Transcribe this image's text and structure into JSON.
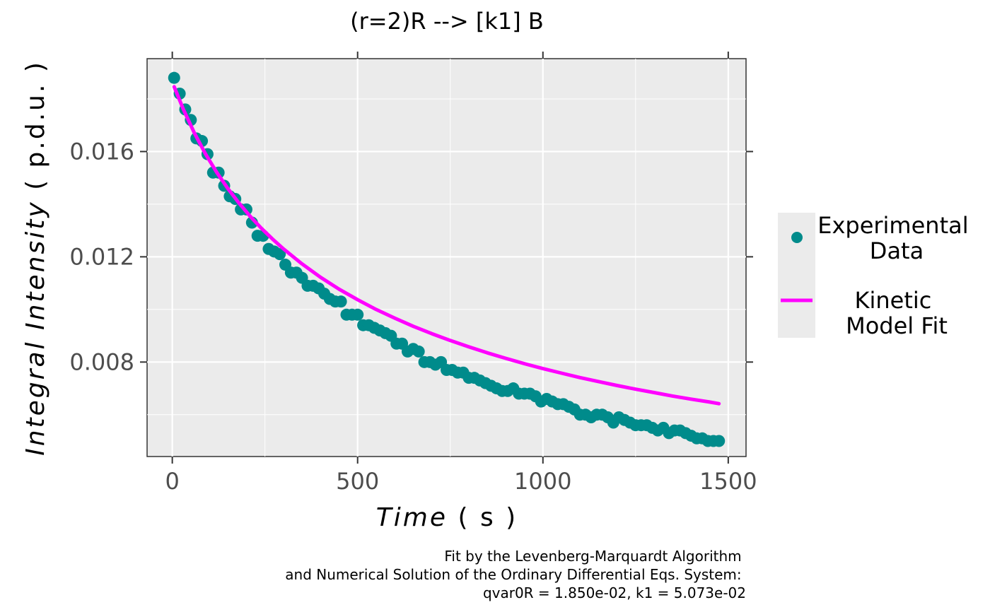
{
  "chart_data": {
    "type": "scatter",
    "title": "(r=2)R --> [k1] B",
    "xlabel": {
      "italic": "Time",
      "unit": " ( s )"
    },
    "ylabel": {
      "italic": "Integral Intensity",
      "unit": " ( p.d.u. )"
    },
    "xlim": [
      -68,
      1548
    ],
    "ylim": [
      0.00441,
      0.01953
    ],
    "x_ticks": [
      0,
      500,
      1000,
      1500
    ],
    "x_tick_labels": [
      "0",
      "500",
      "1000",
      "1500"
    ],
    "y_ticks": [
      0.008,
      0.012,
      0.016
    ],
    "y_tick_labels": [
      "0.008",
      "0.012",
      "0.016"
    ],
    "grid": true,
    "legend_position": "right",
    "legend": [
      {
        "label": [
          "Experimental",
          "Data"
        ],
        "kind": "point",
        "color": "#008B8B"
      },
      {
        "label": [
          "Kinetic",
          "Model Fit"
        ],
        "kind": "line",
        "color": "#FF00FF"
      }
    ],
    "caption": [
      "Fit by the Levenberg-Marquardt Algorithm",
      "and Numerical Solution of the Ordinary Differential Eqs. System:",
      "qvar0R = 1.850e-02, k1 = 5.073e-02"
    ],
    "series": [
      {
        "name": "Experimental Data",
        "kind": "points",
        "color": "#008B8B",
        "x": [
          5,
          20,
          35,
          50,
          65,
          80,
          95,
          110,
          125,
          140,
          155,
          170,
          185,
          200,
          215,
          230,
          245,
          260,
          275,
          290,
          305,
          320,
          335,
          350,
          365,
          380,
          395,
          410,
          425,
          440,
          455,
          470,
          485,
          500,
          515,
          530,
          545,
          560,
          575,
          590,
          605,
          620,
          635,
          650,
          665,
          680,
          695,
          710,
          725,
          740,
          755,
          770,
          785,
          800,
          815,
          830,
          845,
          860,
          875,
          890,
          905,
          920,
          935,
          950,
          965,
          980,
          995,
          1010,
          1025,
          1040,
          1055,
          1070,
          1085,
          1100,
          1115,
          1130,
          1145,
          1160,
          1175,
          1190,
          1205,
          1220,
          1235,
          1250,
          1265,
          1280,
          1295,
          1310,
          1325,
          1340,
          1355,
          1370,
          1385,
          1400,
          1415,
          1430,
          1445,
          1460,
          1475
        ],
        "y": [
          0.0188,
          0.0182,
          0.0176,
          0.0172,
          0.0165,
          0.0164,
          0.0159,
          0.0152,
          0.0152,
          0.0147,
          0.0143,
          0.0142,
          0.0138,
          0.0138,
          0.0133,
          0.0128,
          0.0128,
          0.0123,
          0.0122,
          0.0121,
          0.0117,
          0.0114,
          0.0114,
          0.0112,
          0.0109,
          0.0109,
          0.0108,
          0.0106,
          0.0104,
          0.0103,
          0.0103,
          0.0098,
          0.0098,
          0.0098,
          0.0094,
          0.0094,
          0.0093,
          0.0092,
          0.0091,
          0.009,
          0.0087,
          0.0087,
          0.0084,
          0.0085,
          0.0084,
          0.008,
          0.008,
          0.0079,
          0.008,
          0.0077,
          0.0077,
          0.0076,
          0.0076,
          0.0074,
          0.0074,
          0.0073,
          0.0072,
          0.0071,
          0.007,
          0.0069,
          0.0069,
          0.007,
          0.0068,
          0.0068,
          0.0068,
          0.0067,
          0.0065,
          0.0066,
          0.0065,
          0.0064,
          0.0064,
          0.0063,
          0.0062,
          0.006,
          0.006,
          0.0059,
          0.006,
          0.006,
          0.0059,
          0.0057,
          0.0059,
          0.0058,
          0.0057,
          0.0056,
          0.0056,
          0.0056,
          0.0055,
          0.0054,
          0.0055,
          0.0053,
          0.0054,
          0.0054,
          0.0053,
          0.0052,
          0.0051,
          0.0051,
          0.005,
          0.005,
          0.005
        ]
      },
      {
        "name": "Kinetic Model Fit",
        "kind": "line",
        "color": "#FF00FF",
        "x": [
          5,
          30,
          60,
          90,
          120,
          150,
          180,
          210,
          240,
          270,
          300,
          350,
          400,
          450,
          500,
          550,
          600,
          650,
          700,
          750,
          800,
          850,
          900,
          950,
          1000,
          1050,
          1100,
          1150,
          1200,
          1250,
          1300,
          1350,
          1400,
          1450,
          1475
        ],
        "y": [
          0.01846,
          0.0176,
          0.01669,
          0.0159,
          0.01521,
          0.01459,
          0.01404,
          0.01354,
          0.01309,
          0.01268,
          0.0123,
          0.01173,
          0.01122,
          0.01077,
          0.01037,
          0.01,
          0.00967,
          0.00936,
          0.00908,
          0.00882,
          0.00858,
          0.00835,
          0.00814,
          0.00794,
          0.00775,
          0.00758,
          0.00741,
          0.00726,
          0.00711,
          0.00697,
          0.00684,
          0.00671,
          0.00659,
          0.00648,
          0.00642
        ]
      }
    ]
  }
}
